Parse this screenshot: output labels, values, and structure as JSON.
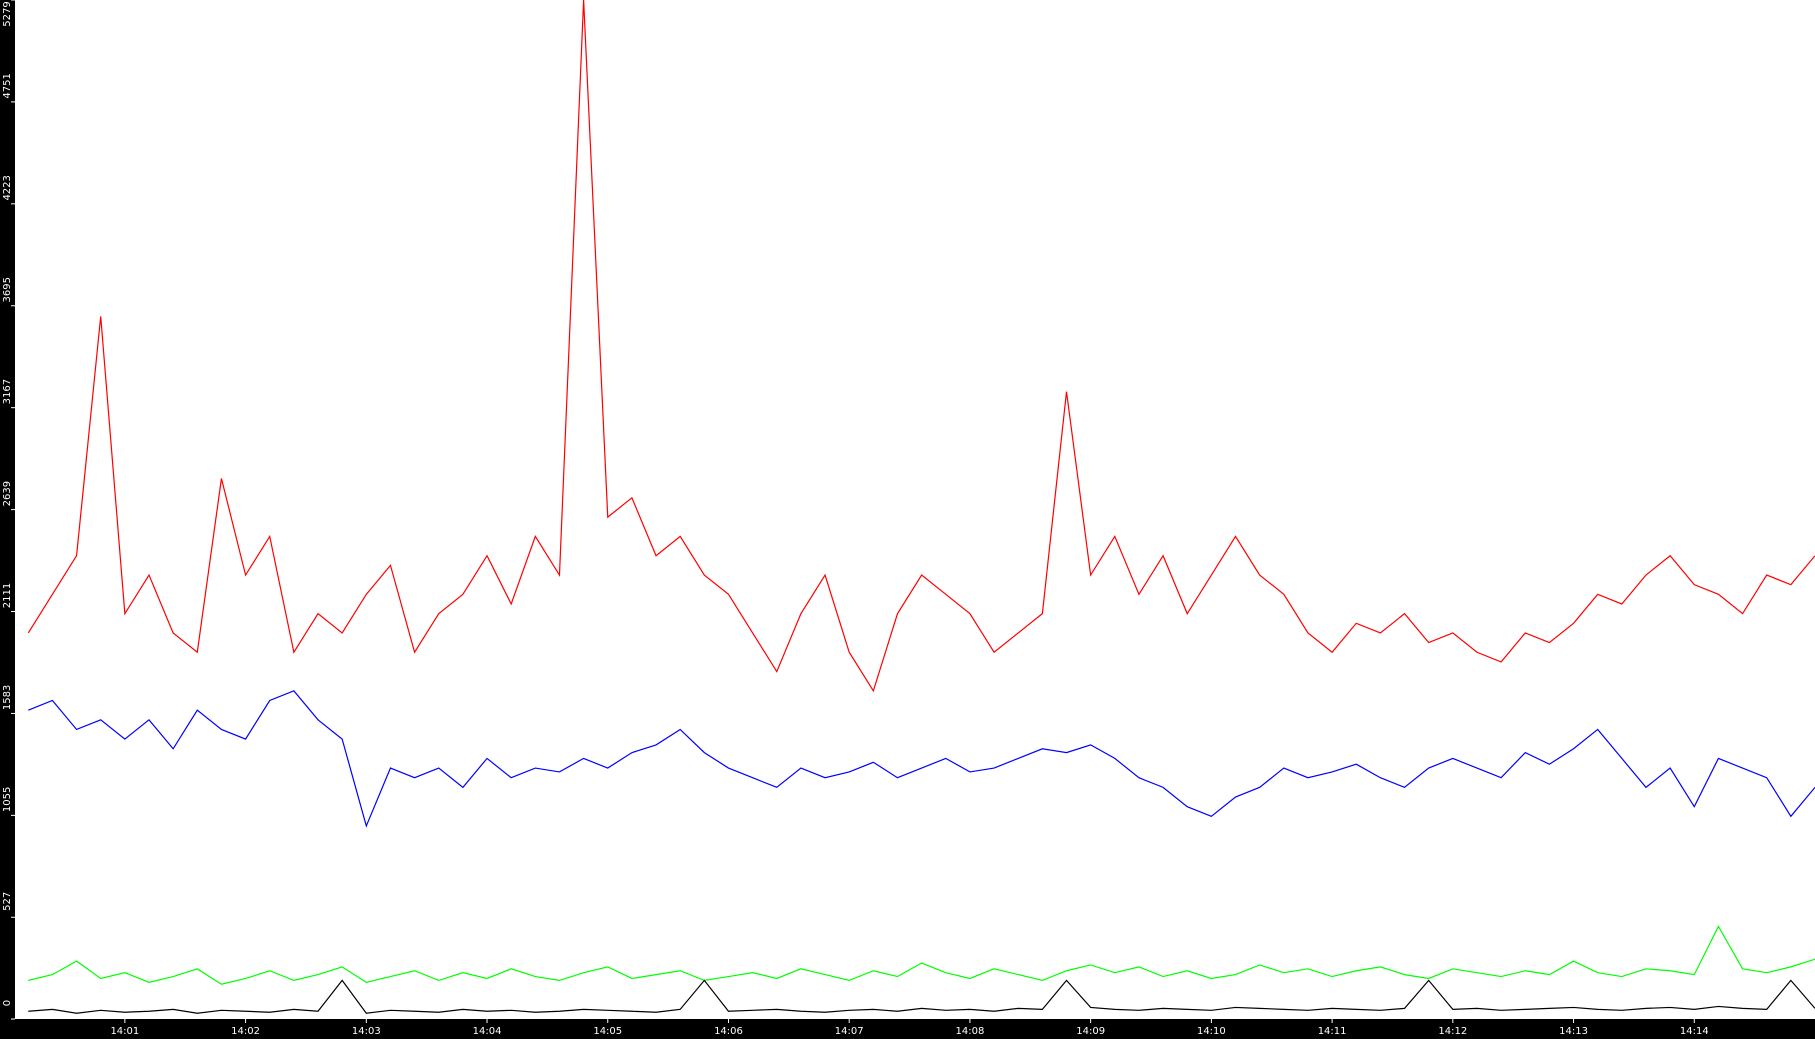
{
  "chart_data": {
    "type": "line",
    "x": [
      0.2,
      0.4,
      0.6,
      0.8,
      1.0,
      1.2,
      1.4,
      1.6,
      1.8,
      2.0,
      2.2,
      2.4,
      2.6,
      2.8,
      3.0,
      3.2,
      3.4,
      3.6,
      3.8,
      4.0,
      4.2,
      4.4,
      4.6,
      4.8,
      5.0,
      5.2,
      5.4,
      5.6,
      5.8,
      6.0,
      6.2,
      6.4,
      6.6,
      6.8,
      7.0,
      7.2,
      7.4,
      7.6,
      7.8,
      8.0,
      8.2,
      8.4,
      8.6,
      8.8,
      9.0,
      9.2,
      9.4,
      9.6,
      9.8,
      10.0,
      10.2,
      10.4,
      10.6,
      10.8,
      11.0,
      11.2,
      11.4,
      11.6,
      11.8,
      12.0,
      12.2,
      12.4,
      12.6,
      12.8,
      13.0,
      13.2,
      13.4,
      13.6,
      13.8,
      14.0,
      14.2,
      14.4,
      14.6,
      14.8,
      15.0
    ],
    "series": [
      {
        "color": "#ff0000",
        "values": [
          2000,
          2200,
          2400,
          3640,
          2100,
          2300,
          2000,
          1900,
          2800,
          2300,
          2500,
          1900,
          2100,
          2000,
          2200,
          2350,
          1900,
          2100,
          2200,
          2400,
          2150,
          2500,
          2300,
          5279,
          2600,
          2700,
          2400,
          2500,
          2300,
          2200,
          2000,
          1800,
          2100,
          2300,
          1900,
          1700,
          2100,
          2300,
          2200,
          2100,
          1900,
          2000,
          2100,
          3250,
          2300,
          2500,
          2200,
          2400,
          2100,
          2300,
          2500,
          2300,
          2200,
          2000,
          1900,
          2050,
          2000,
          2100,
          1950,
          2000,
          1900,
          1850,
          2000,
          1950,
          2050,
          2200,
          2150,
          2300,
          2400,
          2250,
          2200,
          2100,
          2300,
          2250,
          2400
        ]
      },
      {
        "color": "#0000ff",
        "values": [
          1600,
          1650,
          1500,
          1550,
          1450,
          1550,
          1400,
          1600,
          1500,
          1450,
          1650,
          1700,
          1550,
          1450,
          1000,
          1300,
          1250,
          1300,
          1200,
          1350,
          1250,
          1300,
          1280,
          1350,
          1300,
          1380,
          1420,
          1500,
          1380,
          1300,
          1250,
          1200,
          1300,
          1250,
          1280,
          1330,
          1250,
          1300,
          1350,
          1280,
          1300,
          1350,
          1400,
          1380,
          1420,
          1350,
          1250,
          1200,
          1100,
          1050,
          1150,
          1200,
          1300,
          1250,
          1280,
          1320,
          1250,
          1200,
          1300,
          1350,
          1300,
          1250,
          1380,
          1320,
          1400,
          1500,
          1350,
          1200,
          1300,
          1100,
          1350,
          1300,
          1250,
          1050,
          1200
        ]
      },
      {
        "color": "#00ff00",
        "values": [
          200,
          230,
          300,
          210,
          240,
          190,
          220,
          260,
          180,
          210,
          250,
          200,
          230,
          270,
          190,
          220,
          250,
          200,
          240,
          210,
          260,
          220,
          200,
          240,
          270,
          210,
          230,
          250,
          200,
          220,
          240,
          210,
          260,
          230,
          200,
          250,
          220,
          290,
          240,
          210,
          260,
          230,
          200,
          250,
          280,
          240,
          270,
          220,
          250,
          210,
          230,
          280,
          240,
          260,
          220,
          250,
          270,
          230,
          210,
          260,
          240,
          220,
          250,
          230,
          300,
          240,
          220,
          260,
          250,
          230,
          480,
          260,
          240,
          270,
          310
        ]
      },
      {
        "color": "#000000",
        "values": [
          40,
          50,
          30,
          45,
          35,
          40,
          50,
          30,
          45,
          40,
          35,
          50,
          40,
          200,
          30,
          45,
          40,
          35,
          50,
          40,
          45,
          35,
          40,
          50,
          45,
          40,
          35,
          50,
          200,
          40,
          45,
          50,
          40,
          35,
          45,
          50,
          40,
          55,
          45,
          50,
          40,
          55,
          50,
          200,
          60,
          50,
          45,
          55,
          50,
          45,
          60,
          55,
          50,
          45,
          55,
          50,
          45,
          55,
          200,
          50,
          55,
          45,
          50,
          55,
          60,
          50,
          45,
          55,
          60,
          50,
          65,
          55,
          50,
          200,
          55
        ]
      }
    ],
    "xlim": [
      0.09,
      15.0
    ],
    "xticks": [
      {
        "value": 1,
        "label": "14:01"
      },
      {
        "value": 2,
        "label": "14:02"
      },
      {
        "value": 3,
        "label": "14:03"
      },
      {
        "value": 4,
        "label": "14:04"
      },
      {
        "value": 5,
        "label": "14:05"
      },
      {
        "value": 6,
        "label": "14:06"
      },
      {
        "value": 7,
        "label": "14:07"
      },
      {
        "value": 8,
        "label": "14:08"
      },
      {
        "value": 9,
        "label": "14:09"
      },
      {
        "value": 10,
        "label": "14:10"
      },
      {
        "value": 11,
        "label": "14:11"
      },
      {
        "value": 12,
        "label": "14:12"
      },
      {
        "value": 13,
        "label": "14:13"
      },
      {
        "value": 14,
        "label": "14:14"
      }
    ],
    "ylim": [
      0,
      5279
    ],
    "yticks": [
      0,
      527,
      1055,
      1583,
      2111,
      2639,
      3167,
      3695,
      4223,
      4751,
      5279
    ]
  }
}
